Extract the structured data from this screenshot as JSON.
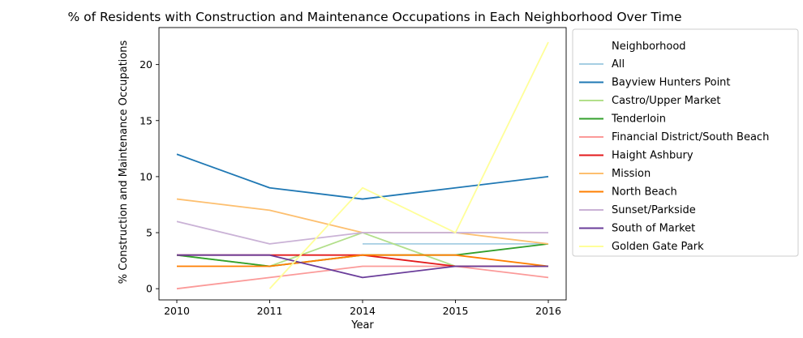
{
  "chart_data": {
    "type": "line",
    "title": "% of Residents with Construction and Maintenance Occupations in Each Neighborhood Over Time",
    "xlabel": "Year",
    "ylabel": "% Construction and Maintenance Occupations",
    "categories": [
      "2010",
      "2011",
      "2014",
      "2015",
      "2016"
    ],
    "ylim": [
      -1,
      23.3
    ],
    "yticks": [
      0,
      5,
      10,
      15,
      20
    ],
    "grid": false,
    "legend": {
      "title": "Neighborhood",
      "placement": "outside-right"
    },
    "series": [
      {
        "name": "All",
        "color": "#a6cee3",
        "values": [
          null,
          null,
          4,
          4,
          4
        ]
      },
      {
        "name": "Bayview Hunters Point",
        "color": "#1f78b4",
        "values": [
          12,
          9,
          8,
          9,
          10
        ]
      },
      {
        "name": "Castro/Upper Market",
        "color": "#b2df8a",
        "values": [
          3,
          2,
          5,
          2,
          2
        ]
      },
      {
        "name": "Tenderloin",
        "color": "#33a02c",
        "values": [
          3,
          2,
          3,
          3,
          4
        ]
      },
      {
        "name": "Financial District/South Beach",
        "color": "#fb9a99",
        "values": [
          0,
          1,
          2,
          2,
          1
        ]
      },
      {
        "name": "Haight Ashbury",
        "color": "#e31a1c",
        "values": [
          3,
          3,
          3,
          2,
          2
        ]
      },
      {
        "name": "Mission",
        "color": "#fdbf6f",
        "values": [
          8,
          7,
          5,
          5,
          4
        ]
      },
      {
        "name": "North Beach",
        "color": "#ff7f00",
        "values": [
          2,
          2,
          3,
          3,
          2
        ]
      },
      {
        "name": "Sunset/Parkside",
        "color": "#cab2d6",
        "values": [
          6,
          4,
          5,
          5,
          5
        ]
      },
      {
        "name": "South of Market",
        "color": "#6a3d9a",
        "values": [
          3,
          3,
          1,
          2,
          2
        ]
      },
      {
        "name": "Golden Gate Park",
        "color": "#ffff99",
        "values": [
          null,
          0,
          9,
          5,
          22
        ]
      }
    ]
  }
}
